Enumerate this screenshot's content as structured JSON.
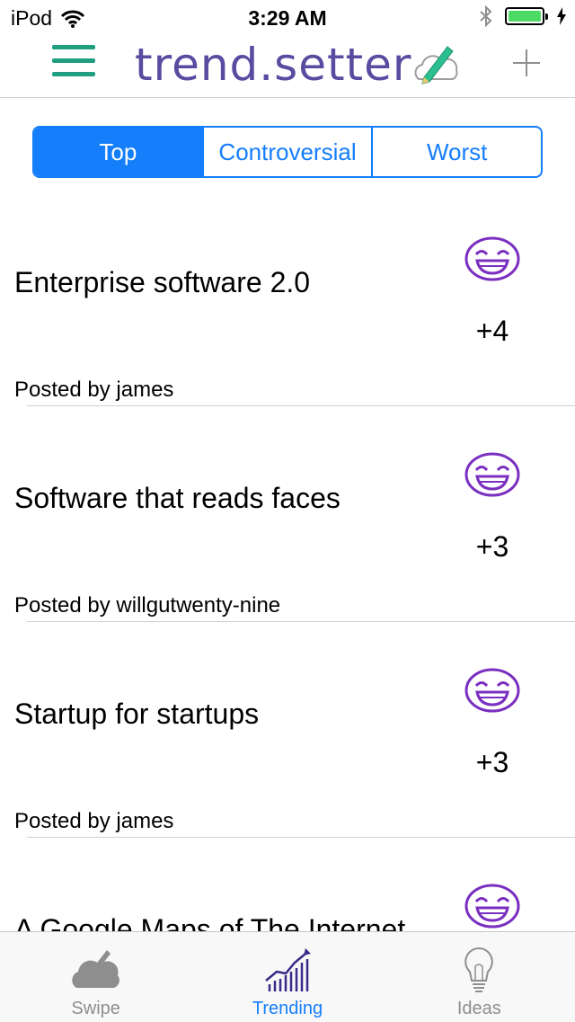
{
  "status_bar": {
    "carrier": "iPod",
    "time": "3:29 AM",
    "battery_color": "#4cd964"
  },
  "nav": {
    "logo_text": "trend.setter",
    "menu_icon": "hamburger-menu-icon",
    "add_icon": "plus-icon"
  },
  "segments": [
    {
      "label": "Top",
      "selected": true
    },
    {
      "label": "Controversial",
      "selected": false
    },
    {
      "label": "Worst",
      "selected": false
    }
  ],
  "posts": [
    {
      "title": "Enterprise software 2.0",
      "score": "+4",
      "author": "Posted by james"
    },
    {
      "title": "Software that reads faces",
      "score": "+3",
      "author": "Posted by willgutwenty-nine"
    },
    {
      "title": "Startup for startups",
      "score": "+3",
      "author": "Posted by james"
    },
    {
      "title": "A Google Maps of The Internet",
      "score": "",
      "author": ""
    }
  ],
  "tabs": [
    {
      "label": "Swipe",
      "icon": "cloud-icon",
      "selected": false
    },
    {
      "label": "Trending",
      "icon": "trending-chart-icon",
      "selected": true
    },
    {
      "label": "Ideas",
      "icon": "lightbulb-icon",
      "selected": false
    }
  ],
  "colors": {
    "accent": "#147efb",
    "brand_purple": "#5a4aa0",
    "brand_green": "#1f9f7f",
    "face_purple": "#7a2fc0"
  }
}
